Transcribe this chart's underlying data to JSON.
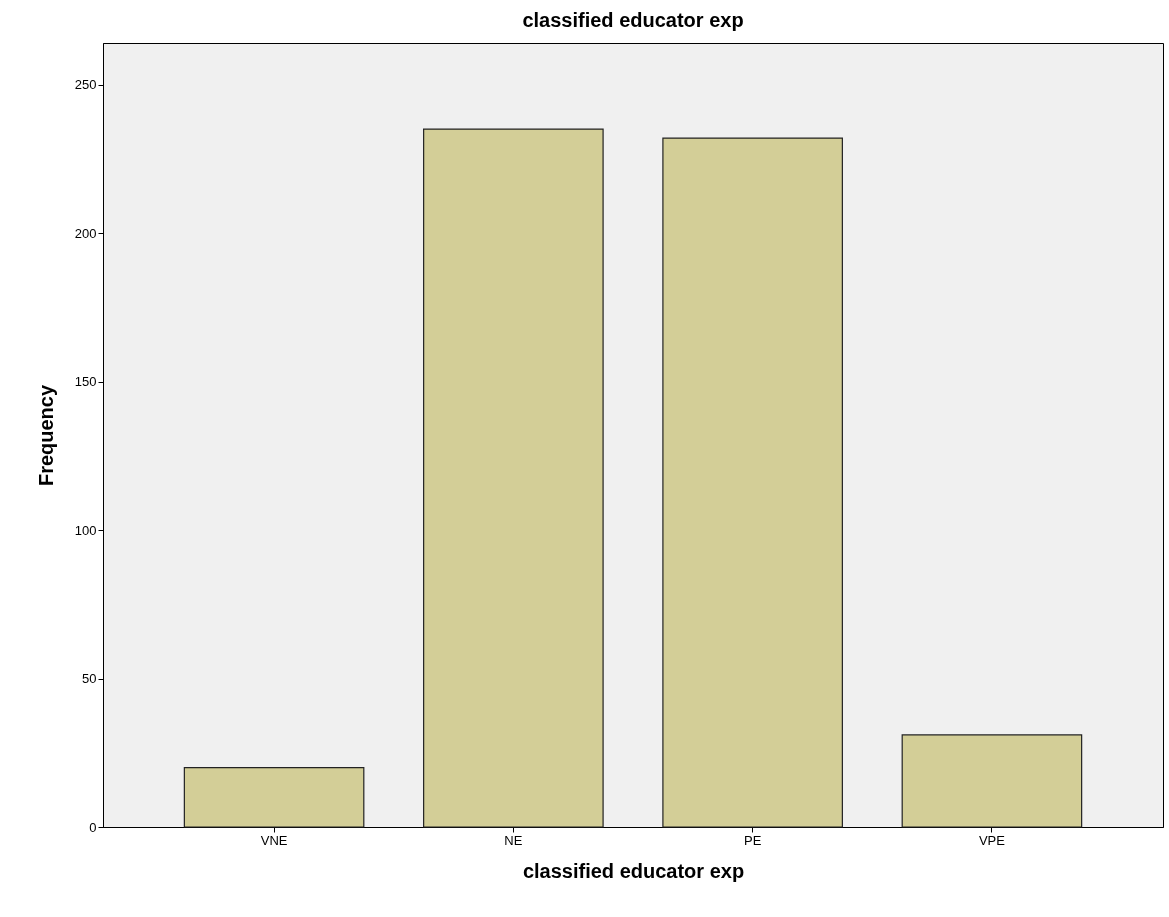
{
  "chart_data": {
    "type": "bar",
    "title": "classified educator exp",
    "xlabel": "classified educator exp",
    "ylabel": "Frequency",
    "categories": [
      "VNE",
      "NE",
      "PE",
      "VPE"
    ],
    "values": [
      20,
      235,
      232,
      31
    ],
    "color": "#d3ce97",
    "ylim": [
      0,
      264
    ],
    "yticks": [
      0,
      50,
      100,
      150,
      200,
      250
    ],
    "grid": false
  }
}
